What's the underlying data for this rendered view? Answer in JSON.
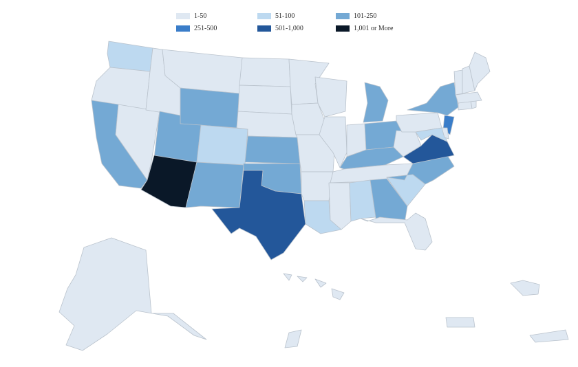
{
  "legend": {
    "items": [
      {
        "label": "1-50",
        "color": "#dfe8f2"
      },
      {
        "label": "51-100",
        "color": "#bdd9f0"
      },
      {
        "label": "101-250",
        "color": "#74a9d4"
      },
      {
        "label": "251-500",
        "color": "#3a7dc9"
      },
      {
        "label": "501-1,000",
        "color": "#23579a"
      },
      {
        "label": "1,001 or More",
        "color": "#0a1828"
      }
    ]
  },
  "map": {
    "region": "United States",
    "state_bins": {
      "WA": "51-100",
      "OR": "1-50",
      "CA": "101-250",
      "NV": "1-50",
      "ID": "1-50",
      "MT": "1-50",
      "WY": "101-250",
      "UT": "101-250",
      "AZ": "1,001 or More",
      "CO": "51-100",
      "NM": "101-250",
      "ND": "1-50",
      "SD": "1-50",
      "NE": "1-50",
      "KS": "101-250",
      "OK": "101-250",
      "TX": "501-1,000",
      "MN": "1-50",
      "IA": "1-50",
      "MO": "1-50",
      "AR": "1-50",
      "LA": "51-100",
      "WI": "1-50",
      "IL": "1-50",
      "MI": "101-250",
      "IN": "1-50",
      "OH": "101-250",
      "KY": "101-250",
      "TN": "1-50",
      "MS": "1-50",
      "AL": "51-100",
      "GA": "101-250",
      "FL": "1-50",
      "SC": "51-100",
      "NC": "101-250",
      "VA": "501-1,000",
      "WV": "1-50",
      "PA": "1-50",
      "NY": "101-250",
      "NJ": "251-500",
      "MD": "51-100",
      "DE": "1-50",
      "CT": "1-50",
      "RI": "1-50",
      "MA": "1-50",
      "VT": "1-50",
      "NH": "1-50",
      "ME": "1-50",
      "AK": "1-50",
      "HI": "1-50",
      "PR": "1-50",
      "VI": "1-50",
      "GU": "1-50"
    }
  }
}
